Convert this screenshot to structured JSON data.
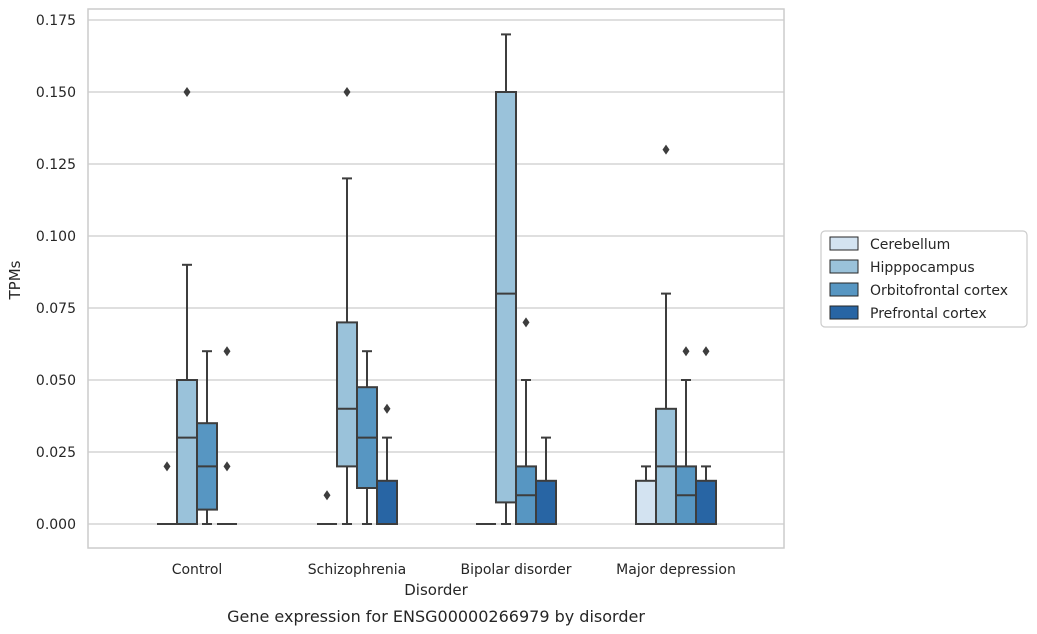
{
  "chart_data": {
    "type": "box",
    "title": "",
    "caption": "Gene expression for ENSG00000266979 by disorder",
    "xlabel": "Disorder",
    "ylabel": "TPMs",
    "ylim": [
      -0.0085,
      0.179
    ],
    "yticks": [
      "0.000",
      "0.025",
      "0.050",
      "0.075",
      "0.100",
      "0.125",
      "0.150",
      "0.175"
    ],
    "ytick_values": [
      0,
      0.025,
      0.05,
      0.075,
      0.1,
      0.125,
      0.15,
      0.175
    ],
    "grid": "horizontal",
    "legend_position": "right",
    "categories": [
      "Control",
      "Schizophrenia",
      "Bipolar disorder",
      "Major depression"
    ],
    "series": [
      {
        "name": "Cerebellum",
        "color": "#d3e3f1",
        "boxes": [
          {
            "q1": 0,
            "median": 0,
            "q3": 0,
            "wlo": 0,
            "whi": 0,
            "outliers": [
              0.02
            ]
          },
          {
            "q1": 0,
            "median": 0,
            "q3": 0,
            "wlo": 0,
            "whi": 0,
            "outliers": [
              0.01
            ]
          },
          {
            "q1": 0,
            "median": 0,
            "q3": 0,
            "wlo": 0,
            "whi": 0,
            "outliers": []
          },
          {
            "q1": 0,
            "median": 0,
            "q3": 0.015,
            "wlo": 0,
            "whi": 0.02,
            "outliers": []
          }
        ]
      },
      {
        "name": "Hipppocampus",
        "color": "#9ac2da",
        "boxes": [
          {
            "q1": 0,
            "median": 0.03,
            "q3": 0.05,
            "wlo": 0,
            "whi": 0.09,
            "outliers": [
              0.15
            ]
          },
          {
            "q1": 0.02,
            "median": 0.04,
            "q3": 0.07,
            "wlo": 0,
            "whi": 0.12,
            "outliers": [
              0.15
            ]
          },
          {
            "q1": 0.0075,
            "median": 0.08,
            "q3": 0.15,
            "wlo": 0,
            "whi": 0.17,
            "outliers": []
          },
          {
            "q1": 0,
            "median": 0.02,
            "q3": 0.04,
            "wlo": 0,
            "whi": 0.08,
            "outliers": [
              0.13
            ]
          }
        ]
      },
      {
        "name": "Orbitofrontal cortex",
        "color": "#5796c2",
        "boxes": [
          {
            "q1": 0.005,
            "median": 0.02,
            "q3": 0.035,
            "wlo": 0,
            "whi": 0.06,
            "outliers": []
          },
          {
            "q1": 0.0125,
            "median": 0.03,
            "q3": 0.0475,
            "wlo": 0,
            "whi": 0.06,
            "outliers": []
          },
          {
            "q1": 0,
            "median": 0.01,
            "q3": 0.02,
            "wlo": 0,
            "whi": 0.05,
            "outliers": [
              0.07
            ]
          },
          {
            "q1": 0,
            "median": 0.01,
            "q3": 0.02,
            "wlo": 0,
            "whi": 0.05,
            "outliers": [
              0.06
            ]
          }
        ]
      },
      {
        "name": "Prefrontal cortex",
        "color": "#2865a4",
        "boxes": [
          {
            "q1": 0,
            "median": 0,
            "q3": 0,
            "wlo": 0,
            "whi": 0,
            "outliers": [
              0.02,
              0.06
            ]
          },
          {
            "q1": 0,
            "median": 0,
            "q3": 0.015,
            "wlo": 0,
            "whi": 0.03,
            "outliers": [
              0.04
            ]
          },
          {
            "q1": 0,
            "median": 0,
            "q3": 0.015,
            "wlo": 0,
            "whi": 0.03,
            "outliers": []
          },
          {
            "q1": 0,
            "median": 0,
            "q3": 0.015,
            "wlo": 0,
            "whi": 0.02,
            "outliers": [
              0.06
            ]
          }
        ]
      }
    ]
  }
}
